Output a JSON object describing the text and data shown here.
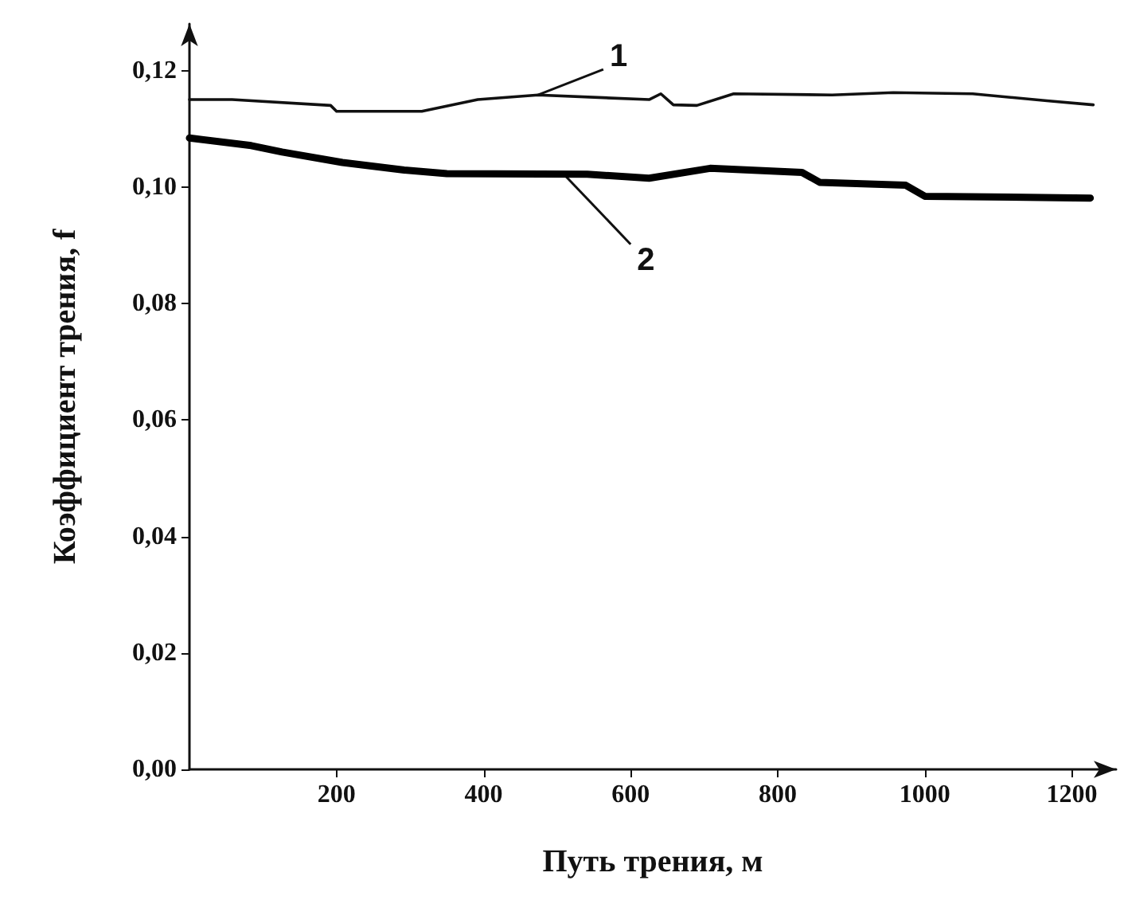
{
  "chart_data": {
    "type": "line",
    "xlabel": "Путь трения, м",
    "ylabel": "Коэффициент трения, f",
    "xlim": [
      0,
      1260
    ],
    "xticks": [
      200,
      400,
      600,
      800,
      1000,
      1200
    ],
    "ylim": [
      0,
      0.128
    ],
    "yticks": [
      {
        "value": 0,
        "label": "0,00"
      },
      {
        "value": 0.02,
        "label": "0,02"
      },
      {
        "value": 0.04,
        "label": "0,04"
      },
      {
        "value": 0.06,
        "label": "0,06"
      },
      {
        "value": 0.08,
        "label": "0,08"
      },
      {
        "value": 0.1,
        "label": "0,10"
      },
      {
        "value": 0.12,
        "label": "0,12"
      }
    ],
    "grid": false,
    "marker": "none",
    "line_style": "solid",
    "series": [
      {
        "color": "#111111",
        "x": [
          0,
          58,
          192,
          200,
          316,
          392,
          474,
          625,
          641,
          658,
          690,
          740,
          874,
          957,
          1065,
          1166,
          1229
        ],
        "values": [
          0.115,
          0.115,
          0.114,
          0.113,
          0.113,
          0.115,
          0.1158,
          0.115,
          0.116,
          0.1141,
          0.114,
          0.116,
          0.1158,
          0.1162,
          0.116,
          0.1148,
          0.1141
        ]
      },
      {
        "color": "#000000",
        "x": [
          0,
          84,
          126,
          208,
          292,
          350,
          541,
          625,
          708,
          833,
          857,
          974,
          1000,
          1225
        ],
        "values": [
          0.1084,
          0.1071,
          0.106,
          0.1042,
          0.1029,
          0.1023,
          0.1022,
          0.1015,
          0.1032,
          0.1025,
          0.1008,
          0.1003,
          0.0984,
          0.0981
        ]
      }
    ],
    "annotations": [
      {
        "text": "1",
        "x": 474,
        "y": 0.1158
      },
      {
        "text": "2",
        "x": 509,
        "y": 0.1022
      }
    ]
  }
}
